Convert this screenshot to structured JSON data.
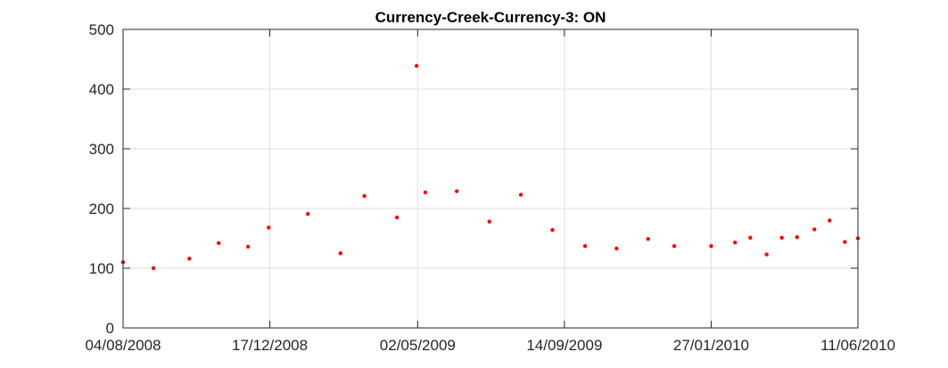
{
  "chart_data": {
    "type": "scatter",
    "title": "Currency-Creek-Currency-3: ON",
    "xlabel": "",
    "ylabel": "",
    "xlim": [
      "2008-08-04",
      "2010-06-11"
    ],
    "ylim": [
      0,
      500
    ],
    "x_ticks": [
      "2008-08-04",
      "2008-12-17",
      "2009-05-02",
      "2009-09-14",
      "2010-01-27",
      "2010-06-11"
    ],
    "x_tick_labels": [
      "04/08/2008",
      "17/12/2008",
      "02/05/2009",
      "14/09/2009",
      "27/01/2010",
      "11/06/2010"
    ],
    "y_ticks": [
      0,
      100,
      200,
      300,
      400,
      500
    ],
    "y_tick_labels": [
      "0",
      "100",
      "200",
      "300",
      "400",
      "500"
    ],
    "grid": true,
    "marker_color": "#ff0000",
    "points": [
      {
        "x": "2008-08-04",
        "y": 110
      },
      {
        "x": "2008-09-01",
        "y": 100
      },
      {
        "x": "2008-10-04",
        "y": 116
      },
      {
        "x": "2008-10-31",
        "y": 142
      },
      {
        "x": "2008-11-27",
        "y": 136
      },
      {
        "x": "2008-12-16",
        "y": 168
      },
      {
        "x": "2009-01-21",
        "y": 191
      },
      {
        "x": "2009-02-20",
        "y": 125
      },
      {
        "x": "2009-03-14",
        "y": 221
      },
      {
        "x": "2009-04-13",
        "y": 185
      },
      {
        "x": "2009-05-01",
        "y": 439
      },
      {
        "x": "2009-05-09",
        "y": 227
      },
      {
        "x": "2009-06-07",
        "y": 229
      },
      {
        "x": "2009-07-07",
        "y": 178
      },
      {
        "x": "2009-08-05",
        "y": 223
      },
      {
        "x": "2009-09-03",
        "y": 164
      },
      {
        "x": "2009-10-03",
        "y": 137
      },
      {
        "x": "2009-11-01",
        "y": 133
      },
      {
        "x": "2009-11-30",
        "y": 149
      },
      {
        "x": "2009-12-24",
        "y": 137
      },
      {
        "x": "2010-01-27",
        "y": 137
      },
      {
        "x": "2010-02-18",
        "y": 143
      },
      {
        "x": "2010-03-04",
        "y": 151
      },
      {
        "x": "2010-03-19",
        "y": 123
      },
      {
        "x": "2010-04-02",
        "y": 151
      },
      {
        "x": "2010-04-16",
        "y": 152
      },
      {
        "x": "2010-05-02",
        "y": 165
      },
      {
        "x": "2010-05-16",
        "y": 180
      },
      {
        "x": "2010-05-30",
        "y": 144
      },
      {
        "x": "2010-06-11",
        "y": 150
      }
    ]
  }
}
